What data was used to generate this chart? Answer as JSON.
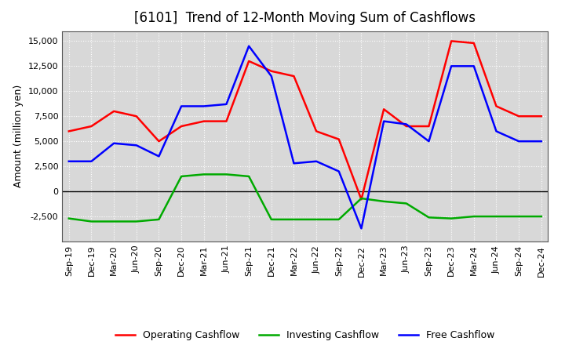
{
  "title": "[6101]  Trend of 12-Month Moving Sum of Cashflows",
  "ylabel": "Amount (million yen)",
  "xlabels": [
    "Sep-19",
    "Dec-19",
    "Mar-20",
    "Jun-20",
    "Sep-20",
    "Dec-20",
    "Mar-21",
    "Jun-21",
    "Sep-21",
    "Dec-21",
    "Mar-22",
    "Jun-22",
    "Sep-22",
    "Dec-22",
    "Mar-23",
    "Jun-23",
    "Sep-23",
    "Dec-23",
    "Mar-24",
    "Jun-24",
    "Sep-24",
    "Dec-24"
  ],
  "operating_cashflow": [
    6000,
    6500,
    8000,
    7500,
    5000,
    6500,
    7000,
    7000,
    13000,
    12000,
    11500,
    6000,
    5200,
    -800,
    8200,
    6500,
    6500,
    15000,
    14800,
    8500,
    7500,
    7500
  ],
  "investing_cashflow": [
    -2700,
    -3000,
    -3000,
    -3000,
    -2800,
    1500,
    1700,
    1700,
    1500,
    -2800,
    -2800,
    -2800,
    -2800,
    -700,
    -1000,
    -1200,
    -2600,
    -2700,
    -2500,
    -2500,
    -2500,
    -2500
  ],
  "free_cashflow": [
    3000,
    3000,
    4800,
    4600,
    3500,
    8500,
    8500,
    8700,
    14500,
    11500,
    2800,
    3000,
    2000,
    -3700,
    7000,
    6700,
    5000,
    12500,
    12500,
    6000,
    5000,
    5000
  ],
  "ylim": [
    -5000,
    16000
  ],
  "yticks": [
    -2500,
    0,
    2500,
    5000,
    7500,
    10000,
    12500,
    15000
  ],
  "operating_color": "#FF0000",
  "investing_color": "#00AA00",
  "free_color": "#0000FF",
  "bg_color": "#FFFFFF",
  "plot_bg_color": "#D8D8D8",
  "grid_color": "#FFFFFF",
  "grid_style": "dotted",
  "zero_line_color": "#000000",
  "line_width": 1.8,
  "title_fontsize": 12,
  "label_fontsize": 9,
  "tick_fontsize": 8,
  "legend_fontsize": 9
}
